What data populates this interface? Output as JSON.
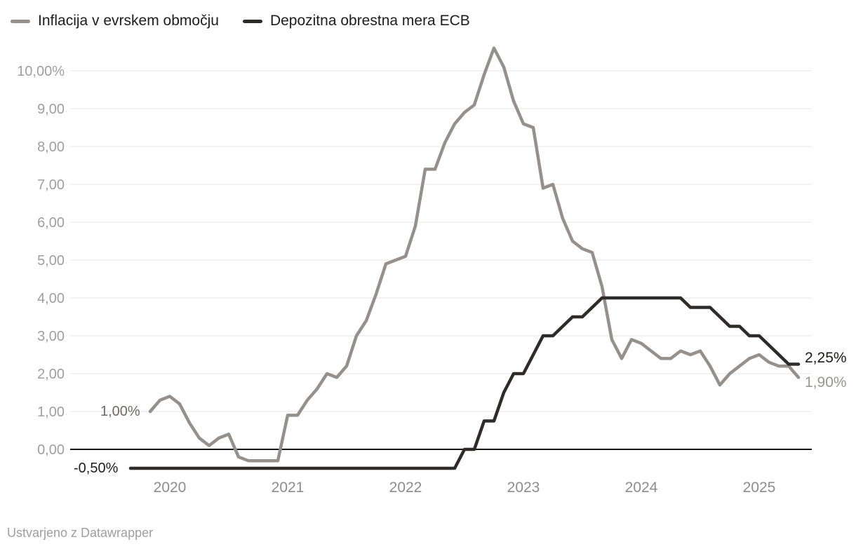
{
  "legend": [
    {
      "label": "Inflacija v evrskem območju",
      "color": "#95908c"
    },
    {
      "label": "Depozitna obrestna mera ECB",
      "color": "#2f2b29"
    }
  ],
  "footer": {
    "text": "Ustvarjeno z Datawrapper"
  },
  "chart_data": {
    "type": "line",
    "title": "",
    "xlabel": "",
    "ylabel": "",
    "grid": "horizontal",
    "legend_position": "top-left",
    "ylim": [
      -0.9,
      10.7
    ],
    "x_years": [
      2020,
      2021,
      2022,
      2023,
      2024,
      2025
    ],
    "y_ticks": [
      {
        "value": 10,
        "label": "10,00%"
      },
      {
        "value": 9,
        "label": "9,00"
      },
      {
        "value": 8,
        "label": "8,00"
      },
      {
        "value": 7,
        "label": "7,00"
      },
      {
        "value": 6,
        "label": "6,00"
      },
      {
        "value": 5,
        "label": "5,00"
      },
      {
        "value": 4,
        "label": "4,00"
      },
      {
        "value": 3,
        "label": "3,00"
      },
      {
        "value": 2,
        "label": "2,00"
      },
      {
        "value": 1,
        "label": "1,00"
      },
      {
        "value": 0,
        "label": "0,00"
      }
    ],
    "series": [
      {
        "id": "inflation",
        "name": "Inflacija v evrskem območju",
        "color": "#95908c",
        "start": "2019-11",
        "frequency": "monthly",
        "values": [
          1.0,
          1.3,
          1.4,
          1.2,
          0.7,
          0.3,
          0.1,
          0.3,
          0.4,
          -0.2,
          -0.3,
          -0.3,
          -0.3,
          -0.3,
          0.9,
          0.9,
          1.3,
          1.6,
          2.0,
          1.9,
          2.2,
          3.0,
          3.4,
          4.1,
          4.9,
          5.0,
          5.1,
          5.9,
          7.4,
          7.4,
          8.1,
          8.6,
          8.9,
          9.1,
          9.9,
          10.6,
          10.1,
          9.2,
          8.6,
          8.5,
          6.9,
          7.0,
          6.1,
          5.5,
          5.3,
          5.2,
          4.3,
          2.9,
          2.4,
          2.9,
          2.8,
          2.6,
          2.4,
          2.4,
          2.6,
          2.5,
          2.6,
          2.2,
          1.7,
          2.0,
          2.2,
          2.4,
          2.5,
          2.3,
          2.2,
          2.2,
          1.9
        ]
      },
      {
        "id": "deposit",
        "name": "Depozitna obrestna mera ECB",
        "color": "#2f2b29",
        "start": "2019-09",
        "frequency": "monthly",
        "values": [
          -0.5,
          -0.5,
          -0.5,
          -0.5,
          -0.5,
          -0.5,
          -0.5,
          -0.5,
          -0.5,
          -0.5,
          -0.5,
          -0.5,
          -0.5,
          -0.5,
          -0.5,
          -0.5,
          -0.5,
          -0.5,
          -0.5,
          -0.5,
          -0.5,
          -0.5,
          -0.5,
          -0.5,
          -0.5,
          -0.5,
          -0.5,
          -0.5,
          -0.5,
          -0.5,
          -0.5,
          -0.5,
          -0.5,
          -0.5,
          0.0,
          0.0,
          0.75,
          0.75,
          1.5,
          2.0,
          2.0,
          2.5,
          3.0,
          3.0,
          3.25,
          3.5,
          3.5,
          3.75,
          4.0,
          4.0,
          4.0,
          4.0,
          4.0,
          4.0,
          4.0,
          4.0,
          4.0,
          3.75,
          3.75,
          3.75,
          3.5,
          3.25,
          3.25,
          3.0,
          3.0,
          2.75,
          2.5,
          2.25,
          2.25
        ]
      }
    ],
    "annotations": {
      "inflation_start": "1,00%",
      "deposit_start": "-0,50%",
      "deposit_end": "2,25%",
      "inflation_end": "1,90%"
    }
  }
}
